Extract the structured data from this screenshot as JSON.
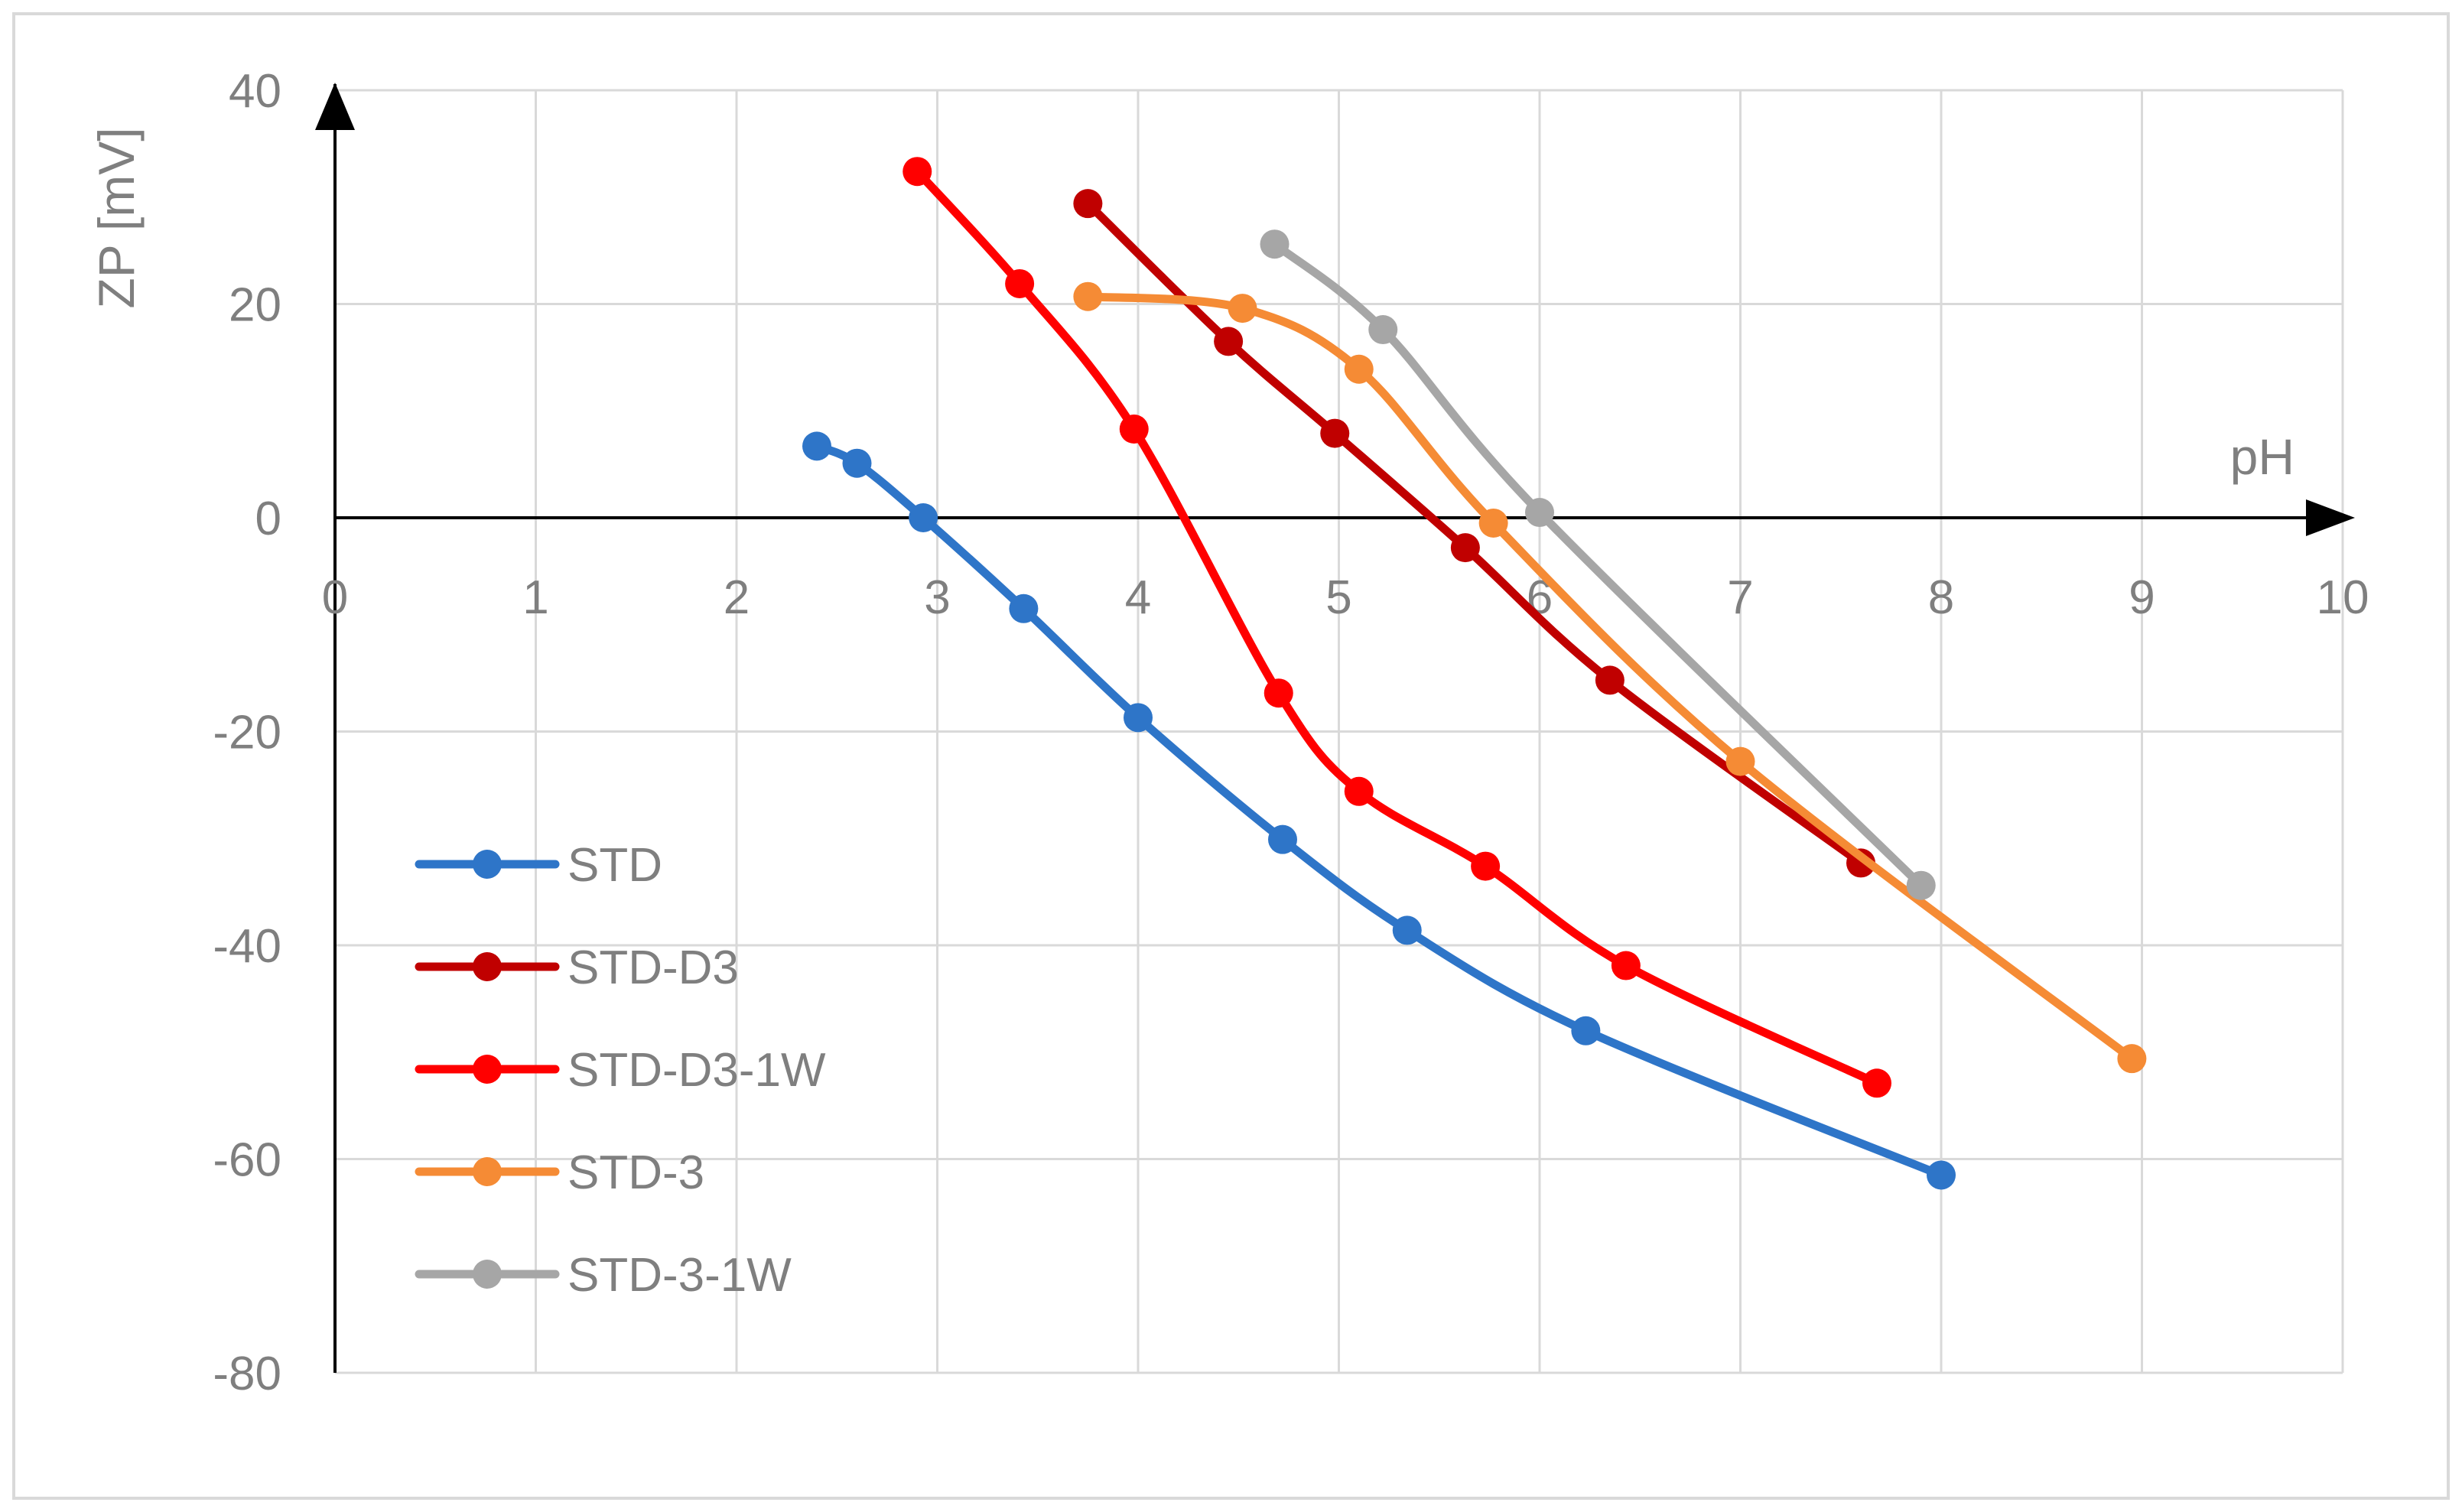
{
  "chart_data": {
    "type": "line",
    "title": "",
    "xlabel": "pH",
    "ylabel": "ZP [mV]",
    "xlim": [
      0,
      10
    ],
    "ylim": [
      -80,
      40
    ],
    "x_ticks": [
      0,
      1,
      2,
      3,
      4,
      5,
      6,
      7,
      8,
      9,
      10
    ],
    "y_ticks": [
      40,
      20,
      0,
      -20,
      -40,
      -60,
      -80
    ],
    "grid": true,
    "legend_position": "left-lower",
    "series": [
      {
        "name": "STD",
        "color": "#2e75c8",
        "points": [
          [
            2.4,
            6.7
          ],
          [
            2.6,
            5.1
          ],
          [
            2.93,
            0.0
          ],
          [
            3.43,
            -8.5
          ],
          [
            4.0,
            -18.7
          ],
          [
            4.72,
            -30.1
          ],
          [
            5.34,
            -38.6
          ],
          [
            6.23,
            -48.0
          ],
          [
            8.0,
            -61.5
          ]
        ]
      },
      {
        "name": "STD-D3",
        "color": "#c00000",
        "points": [
          [
            3.75,
            29.4
          ],
          [
            4.45,
            16.5
          ],
          [
            4.98,
            7.9
          ],
          [
            5.63,
            -2.8
          ],
          [
            6.35,
            -15.2
          ],
          [
            7.6,
            -32.3
          ]
        ]
      },
      {
        "name": "STD-D3-1W",
        "color": "#ff0000",
        "points": [
          [
            2.9,
            32.4
          ],
          [
            3.41,
            21.9
          ],
          [
            3.98,
            8.3
          ],
          [
            4.7,
            -16.4
          ],
          [
            5.1,
            -25.6
          ],
          [
            5.73,
            -32.6
          ],
          [
            6.43,
            -41.9
          ],
          [
            7.68,
            -52.9
          ]
        ]
      },
      {
        "name": "STD-3",
        "color": "#f58b35",
        "points": [
          [
            3.75,
            20.7
          ],
          [
            4.52,
            19.6
          ],
          [
            5.1,
            13.9
          ],
          [
            5.77,
            -0.5
          ],
          [
            7.0,
            -22.8
          ],
          [
            8.95,
            -50.6
          ]
        ]
      },
      {
        "name": "STD-3-1W",
        "color": "#a6a6a6",
        "points": [
          [
            4.68,
            25.6
          ],
          [
            5.22,
            17.6
          ],
          [
            6.0,
            0.5
          ],
          [
            7.9,
            -34.4
          ]
        ]
      }
    ]
  }
}
